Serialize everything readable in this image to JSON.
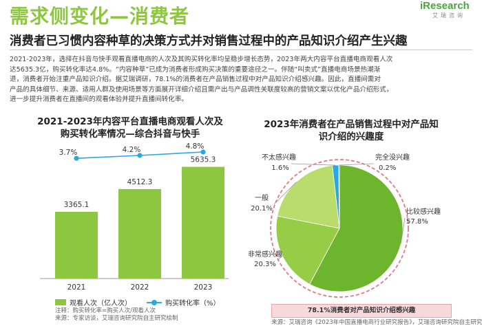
{
  "header": {
    "title": "需求侧变化—消费者",
    "subtitle": "消费者已习惯内容种草的决策方式并对销售过程中的产品知识介绍产生兴趣",
    "logo_main": "iResearch",
    "logo_sub": "艾瑞咨询"
  },
  "intro_lines": [
    "2021-2023年，选择在抖音与快手观看直播电商的人次及其购买转化率均呈稳步增长态势，2023年两大内容平台直播电商观看人次",
    "达5635.3亿，购买转化率达4.8%。“内容种草”已成为消费者形成购买决策的重要途径之一。伴随“叫卖式”直播电商场景热潮渐",
    "退，消费者开始注重产品知识介绍。据艾瑞调研，78.1%的消费者在产品销售过程中对产品知识介绍感兴趣。因此，直播间需对",
    "产品的具体细节、来源、适用人群及使用场景等方面展开详细介绍且需产出与产品调性关联度较高的营销文案以优化产品介绍形式，",
    "进一步提升消费者在直播间的观看体验并提升直播间转化率。"
  ],
  "left_chart": {
    "title_line1": "2021-2023年内容平台直播电商观看人次及",
    "title_line2": "购买转化率情况—综合抖音与快手",
    "legend_bar": "观看人次（亿人次）",
    "legend_line": "购买转化率（%）",
    "footnote_line1": "注释：购买转化率=购买人次/观看人次",
    "footnote_line2": "来源：专家访谈，艾瑞咨询研究院自主研究绘制"
  },
  "right_chart": {
    "title_line1": "2023年消费者在产品销售过程中对产品知",
    "title_line2": "识介绍的兴趣度",
    "callout": "78.1%消费者对产品知识介绍感兴趣",
    "source": "来源：艾瑞咨询《2023年中国直播电商行业研究报告》，艾瑞咨询研究院自主研究绘制"
  },
  "chart_data": [
    {
      "type": "bar",
      "categories": [
        "2021",
        "2022",
        "2023"
      ],
      "series": [
        {
          "name": "观看人次（亿人次）",
          "values": [
            3365.1,
            4512.3,
            5635.3
          ]
        },
        {
          "name": "购买转化率（%）",
          "values": [
            3.7,
            4.2,
            4.8
          ]
        }
      ],
      "value_labels": [
        "3365.1",
        "4512.3",
        "5635.3"
      ],
      "rate_labels": [
        "3.7%",
        "4.2%",
        "4.8%"
      ],
      "ylim": [
        0,
        6000
      ]
    },
    {
      "type": "pie",
      "slices": [
        {
          "label": "比较感兴趣",
          "value": 57.8,
          "value_label": "57.8%",
          "color": "#6cb52d"
        },
        {
          "label": "非常感兴趣",
          "value": 20.3,
          "value_label": "20.3%",
          "color": "#96cc46"
        },
        {
          "label": "一般",
          "value": 20.1,
          "value_label": "20.1%",
          "color": "#b9dc6c"
        },
        {
          "label": "不太感兴趣",
          "value": 1.6,
          "value_label": "1.6%",
          "color": "#29a9e0"
        },
        {
          "label": "完全没兴趣",
          "value": 0.2,
          "value_label": "0.2%",
          "color": "#1f5f9a"
        }
      ]
    }
  ],
  "colors": {
    "accent": "#8dc63f",
    "line": "#29a9e0",
    "highlight_border": "#e07a86"
  }
}
